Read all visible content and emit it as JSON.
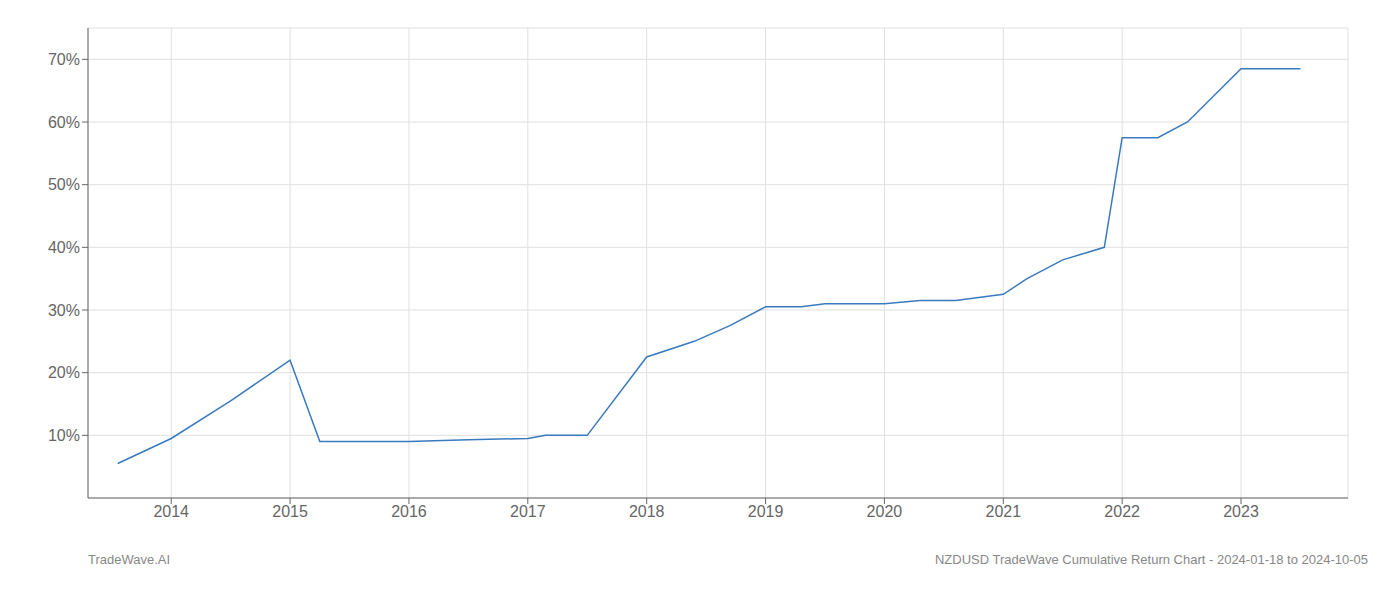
{
  "chart_data": {
    "type": "line",
    "x": [
      2013.55,
      2014.0,
      2014.5,
      2015.0,
      2015.25,
      2016.0,
      2016.5,
      2017.0,
      2017.15,
      2017.5,
      2018.0,
      2018.4,
      2018.7,
      2019.0,
      2019.3,
      2019.5,
      2019.8,
      2020.0,
      2020.3,
      2020.6,
      2021.0,
      2021.2,
      2021.5,
      2021.85,
      2022.0,
      2022.3,
      2022.55,
      2023.0,
      2023.5
    ],
    "values": [
      5.5,
      9.5,
      15.5,
      22.0,
      9.0,
      9.0,
      9.3,
      9.5,
      10.0,
      10.0,
      22.5,
      25.0,
      27.5,
      30.5,
      30.5,
      31.0,
      31.0,
      31.0,
      31.5,
      31.5,
      32.5,
      35.0,
      38.0,
      40.0,
      57.5,
      57.5,
      60.0,
      68.5,
      68.5
    ],
    "color": "#3a7abf",
    "xlim": [
      2013.3,
      2023.9
    ],
    "ylim": [
      0,
      75
    ],
    "xticks": [
      2014,
      2015,
      2016,
      2017,
      2018,
      2019,
      2020,
      2021,
      2022,
      2023
    ],
    "yticks": [
      {
        "value": 10,
        "label": "10%"
      },
      {
        "value": 20,
        "label": "20%"
      },
      {
        "value": 30,
        "label": "30%"
      },
      {
        "value": 40,
        "label": "40%"
      },
      {
        "value": 50,
        "label": "50%"
      },
      {
        "value": 60,
        "label": "60%"
      },
      {
        "value": 70,
        "label": "70%"
      }
    ],
    "grid": true,
    "annotations": [
      "TradeWave.AI",
      "NZDUSD TradeWave Cumulative Return Chart - 2024-01-18 to 2024-10-05"
    ]
  }
}
